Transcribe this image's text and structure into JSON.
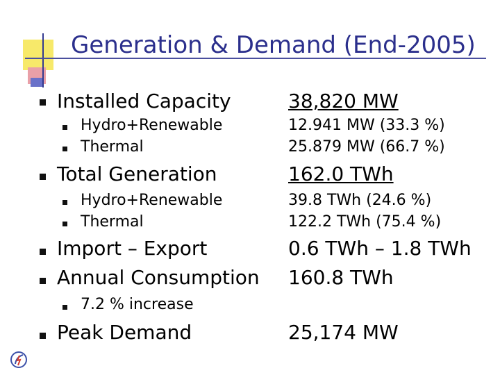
{
  "title": "Generation & Demand (End-2005)",
  "rows": [
    {
      "level": 1,
      "label": "Installed Capacity",
      "value": "38,820 MW",
      "value_underlined": true
    },
    {
      "level": 2,
      "label": "Hydro+Renewable",
      "value": "12.941 MW (33.3 %)"
    },
    {
      "level": 2,
      "label": "Thermal",
      "value": "25.879 MW (66.7 %)"
    },
    {
      "level": 1,
      "label": "Total Generation",
      "value": "162.0 TWh",
      "value_underlined": true
    },
    {
      "level": 2,
      "label": "Hydro+Renewable",
      "value": "39.8 TWh (24.6 %)"
    },
    {
      "level": 2,
      "label": "Thermal",
      "value": "122.2 TWh (75.4 %)"
    },
    {
      "level": 1,
      "label": "Import – Export",
      "value": "0.6 TWh – 1.8 TWh"
    },
    {
      "level": 1,
      "label": "Annual Consumption",
      "value": "160.8 TWh"
    },
    {
      "level": 2,
      "label": "7.2 % increase",
      "value": ""
    },
    {
      "level": 1,
      "label": "Peak Demand",
      "value": "25,174 MW"
    }
  ],
  "colors": {
    "title": "#2b2f8c",
    "text": "#000000",
    "accent_yellow": "#f7e96a",
    "accent_red": "#e9a0a8",
    "accent_blue": "#6a71c9"
  },
  "icons": {
    "logo": "company-logo-icon"
  }
}
